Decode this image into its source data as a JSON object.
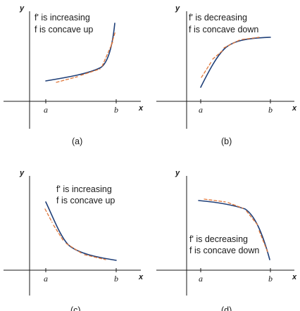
{
  "panels": [
    {
      "id": "a",
      "y_axis_label": "y",
      "x_axis_label": "x",
      "tick_a": "a",
      "tick_b": "b",
      "line1": "f' is increasing",
      "line2": "f is concave up",
      "caption": "(a)"
    },
    {
      "id": "b",
      "y_axis_label": "y",
      "x_axis_label": "x",
      "tick_a": "a",
      "tick_b": "b",
      "line1": "f' is decreasing",
      "line2": "f is concave down",
      "caption": "(b)"
    },
    {
      "id": "c",
      "y_axis_label": "y",
      "x_axis_label": "x",
      "tick_a": "a",
      "tick_b": "b",
      "line1": "f' is increasing",
      "line2": "f is concave up",
      "caption": "(c)"
    },
    {
      "id": "d",
      "y_axis_label": "y",
      "x_axis_label": "x",
      "tick_a": "a",
      "tick_b": "b",
      "line1": "f' is decreasing",
      "line2": "f is concave down",
      "caption": "(d)"
    }
  ],
  "colors": {
    "curve": "#1f3f78",
    "tangent_segments": "#e0773a",
    "axes": "#1a1a1a"
  }
}
